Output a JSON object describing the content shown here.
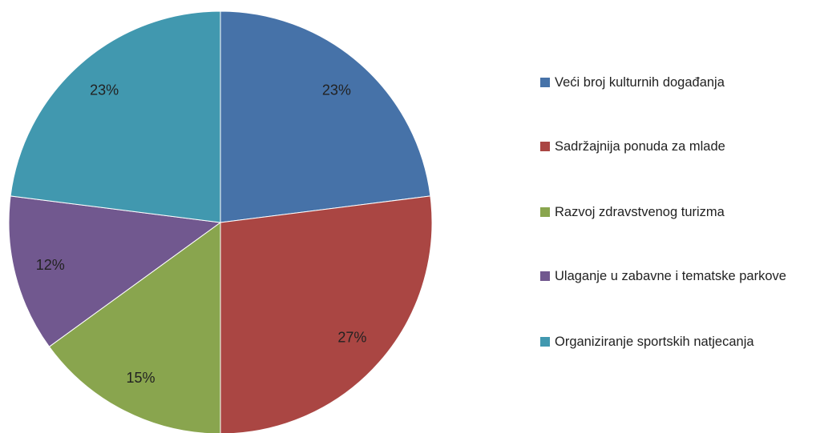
{
  "chart_data": {
    "type": "pie",
    "categories": [
      "Veći broj kulturnih događanja",
      "Sadržajnija ponuda za mlade",
      "Razvoj zdravstvenog turizma",
      "Ulaganje u zabavne i tematske parkove",
      "Organiziranje sportskih natjecanja"
    ],
    "values": [
      23,
      27,
      15,
      12,
      23
    ],
    "value_labels": [
      "23%",
      "27%",
      "15%",
      "12%",
      "23%"
    ],
    "colors": [
      "#4672a8",
      "#aa4643",
      "#89a54e",
      "#71588f",
      "#4198af"
    ],
    "legend": "right"
  }
}
